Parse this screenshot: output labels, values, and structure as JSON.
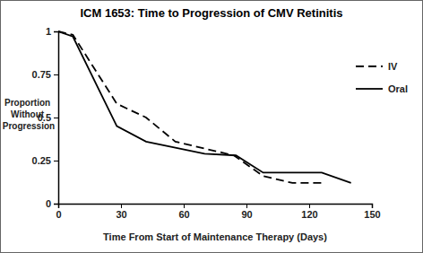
{
  "chart_data": {
    "type": "line",
    "title": "ICM 1653: Time to Progression of CMV Retinitis",
    "x_label": "Time From Start of Maintenance Therapy (Days)",
    "y_label": "Proportion Without Progression",
    "series": [
      {
        "name": "IV",
        "color": "#000000",
        "line_style": "dashed",
        "x": [
          0,
          7,
          28,
          42,
          56,
          84,
          98,
          112,
          126
        ],
        "values": [
          1,
          0.98,
          0.58,
          0.5,
          0.36,
          0.28,
          0.16,
          0.12,
          0.12
        ]
      },
      {
        "name": "Oral",
        "color": "#000000",
        "line_style": "solid",
        "x": [
          0,
          7,
          28,
          42,
          70,
          85,
          98,
          126,
          140
        ],
        "values": [
          1,
          0.97,
          0.45,
          0.36,
          0.29,
          0.28,
          0.18,
          0.18,
          0.12
        ]
      }
    ],
    "xlim": [
      0,
      150
    ],
    "xticks": [
      0,
      30,
      60,
      90,
      120,
      150
    ],
    "ylim": [
      0,
      1
    ],
    "yticks": [
      0,
      0.25,
      0.5,
      0.75,
      1
    ],
    "grid": false,
    "legend": "upper right"
  }
}
